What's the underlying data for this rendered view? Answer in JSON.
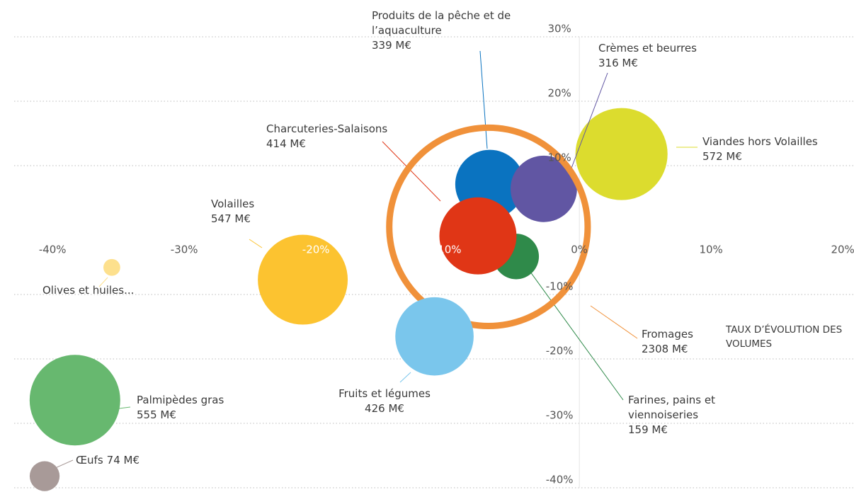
{
  "chart_data": {
    "type": "bubble",
    "x_label": "TAUX D’ÉVOLUTION DES VOLUMES",
    "xlim": [
      -42,
      20.8
    ],
    "ylim": [
      -40,
      30
    ],
    "xticks": [
      {
        "value": -40,
        "label": "-40%"
      },
      {
        "value": -30,
        "label": "-30%"
      },
      {
        "value": -20,
        "label": "-20%"
      },
      {
        "value": -10,
        "label": "-10%"
      },
      {
        "value": 0,
        "label": "0%"
      },
      {
        "value": 10,
        "label": "10%"
      },
      {
        "value": 20,
        "label": "20%"
      }
    ],
    "yticks": [
      {
        "value": 30,
        "label": "30%"
      },
      {
        "value": 20,
        "label": "20%"
      },
      {
        "value": 10,
        "label": "10%"
      },
      {
        "value": -10,
        "label": "-10%"
      },
      {
        "value": -20,
        "label": "-20%"
      },
      {
        "value": -30,
        "label": "-30%"
      },
      {
        "value": -40,
        "label": "-40%"
      }
    ],
    "grid": true,
    "series": [
      {
        "name": "Viandes hors Volailles",
        "color": "#dcdc2e",
        "x": 3.2,
        "y": 11.8,
        "size": 572,
        "size_label": "572 M€"
      },
      {
        "name": "Farines, pains et viennoiseries",
        "color": "#2f8a4a",
        "x": -4.8,
        "y": -4.1,
        "size": 159,
        "size_label": "159 M€"
      },
      {
        "name": "Produits de la pêche et de l’aquaculture",
        "color": "#0a73c0",
        "x": -6.8,
        "y": 7.1,
        "size": 339,
        "size_label": "339 M€"
      },
      {
        "name": "Charcuteries-Salaisons",
        "color": "#e03616",
        "x": -7.7,
        "y": -0.9,
        "size": 414,
        "size_label": "414 M€"
      },
      {
        "name": "Crèmes et beurres",
        "color": "#6156a3",
        "x": -2.7,
        "y": 6.4,
        "size": 316,
        "size_label": "316 M€"
      },
      {
        "name": "Fromages",
        "color": "#f0913a",
        "x": -6.9,
        "y": 0.5,
        "size": 2308,
        "size_label": "2308 M€",
        "ring": true
      },
      {
        "name": "Volailles",
        "color": "#fcc330",
        "x": -21.0,
        "y": -7.7,
        "size": 547,
        "size_label": "547 M€"
      },
      {
        "name": "Olives et huiles...",
        "color": "#fde08d",
        "x": -35.5,
        "y": -5.8,
        "size": 26
      },
      {
        "name": "Fruits et légumes",
        "color": "#7ac6ec",
        "x": -11.0,
        "y": -16.5,
        "size": 426,
        "size_label": "426 M€"
      },
      {
        "name": "Palmipèdes gras",
        "color": "#67b86f",
        "x": -38.3,
        "y": -26.4,
        "size": 555,
        "size_label": "555 M€"
      },
      {
        "name": "Œufs",
        "color": "#a89a98",
        "x": -40.6,
        "y": -38.2,
        "size": 74,
        "size_label": "74 M€"
      }
    ]
  }
}
